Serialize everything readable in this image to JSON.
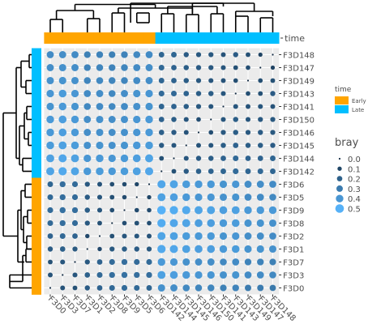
{
  "chart_data": {
    "type": "heatmap",
    "samples_x": [
      "F3D0",
      "F3D3",
      "F3D7",
      "F3D1",
      "F3D2",
      "F3D8",
      "F3D9",
      "F3D5",
      "F3D6",
      "F3D142",
      "F3D144",
      "F3D145",
      "F3D146",
      "F3D150",
      "F3D141",
      "F3D143",
      "F3D149",
      "F3D147",
      "F3D148"
    ],
    "samples_y": [
      "F3D148",
      "F3D147",
      "F3D149",
      "F3D143",
      "F3D141",
      "F3D150",
      "F3D146",
      "F3D145",
      "F3D144",
      "F3D142",
      "F3D6",
      "F3D5",
      "F3D9",
      "F3D8",
      "F3D2",
      "F3D1",
      "F3D7",
      "F3D3",
      "F3D0"
    ],
    "time_x": [
      "Early",
      "Early",
      "Early",
      "Early",
      "Early",
      "Early",
      "Early",
      "Early",
      "Early",
      "Late",
      "Late",
      "Late",
      "Late",
      "Late",
      "Late",
      "Late",
      "Late",
      "Late",
      "Late"
    ],
    "time_y": [
      "Late",
      "Late",
      "Late",
      "Late",
      "Late",
      "Late",
      "Late",
      "Late",
      "Late",
      "Late",
      "Early",
      "Early",
      "Early",
      "Early",
      "Early",
      "Early",
      "Early",
      "Early",
      "Early"
    ],
    "values": [
      [
        0.36,
        0.37,
        0.36,
        0.32,
        0.33,
        0.32,
        0.33,
        0.35,
        0.36,
        0.22,
        0.22,
        0.18,
        0.17,
        0.17,
        0.15,
        0.18,
        0.14,
        0.09,
        0.0
      ],
      [
        0.37,
        0.38,
        0.37,
        0.33,
        0.34,
        0.33,
        0.34,
        0.36,
        0.37,
        0.23,
        0.21,
        0.19,
        0.18,
        0.17,
        0.16,
        0.14,
        0.13,
        0.0,
        0.09
      ],
      [
        0.38,
        0.39,
        0.38,
        0.34,
        0.35,
        0.34,
        0.34,
        0.36,
        0.37,
        0.22,
        0.21,
        0.19,
        0.17,
        0.16,
        0.15,
        0.13,
        0.0,
        0.13,
        0.14
      ],
      [
        0.4,
        0.42,
        0.4,
        0.36,
        0.37,
        0.35,
        0.37,
        0.39,
        0.4,
        0.24,
        0.23,
        0.21,
        0.19,
        0.19,
        0.16,
        0.0,
        0.13,
        0.14,
        0.18
      ],
      [
        0.39,
        0.41,
        0.39,
        0.35,
        0.36,
        0.35,
        0.36,
        0.38,
        0.39,
        0.22,
        0.21,
        0.19,
        0.17,
        0.16,
        0.0,
        0.16,
        0.15,
        0.16,
        0.15
      ],
      [
        0.41,
        0.43,
        0.41,
        0.37,
        0.38,
        0.37,
        0.38,
        0.4,
        0.41,
        0.21,
        0.19,
        0.16,
        0.13,
        0.0,
        0.16,
        0.19,
        0.16,
        0.17,
        0.17
      ],
      [
        0.41,
        0.43,
        0.41,
        0.37,
        0.38,
        0.37,
        0.38,
        0.4,
        0.41,
        0.2,
        0.18,
        0.15,
        0.0,
        0.13,
        0.17,
        0.19,
        0.17,
        0.18,
        0.17
      ],
      [
        0.42,
        0.44,
        0.42,
        0.38,
        0.39,
        0.38,
        0.39,
        0.41,
        0.42,
        0.18,
        0.16,
        0.0,
        0.15,
        0.16,
        0.19,
        0.21,
        0.19,
        0.19,
        0.18
      ],
      [
        0.44,
        0.46,
        0.44,
        0.4,
        0.41,
        0.4,
        0.41,
        0.43,
        0.45,
        0.14,
        0.0,
        0.16,
        0.18,
        0.19,
        0.21,
        0.23,
        0.21,
        0.21,
        0.22
      ],
      [
        0.45,
        0.47,
        0.45,
        0.41,
        0.42,
        0.41,
        0.42,
        0.44,
        0.46,
        0.0,
        0.14,
        0.18,
        0.2,
        0.21,
        0.22,
        0.24,
        0.22,
        0.23,
        0.22
      ],
      [
        0.22,
        0.25,
        0.24,
        0.17,
        0.15,
        0.13,
        0.12,
        0.1,
        0.0,
        0.46,
        0.45,
        0.42,
        0.41,
        0.41,
        0.39,
        0.4,
        0.37,
        0.37,
        0.36
      ],
      [
        0.23,
        0.25,
        0.24,
        0.18,
        0.16,
        0.14,
        0.12,
        0.0,
        0.1,
        0.44,
        0.43,
        0.41,
        0.4,
        0.4,
        0.38,
        0.39,
        0.36,
        0.36,
        0.35
      ],
      [
        0.24,
        0.26,
        0.25,
        0.19,
        0.16,
        0.13,
        0.0,
        0.12,
        0.12,
        0.5,
        0.48,
        0.47,
        0.45,
        0.45,
        0.43,
        0.44,
        0.41,
        0.41,
        0.41
      ],
      [
        0.23,
        0.25,
        0.24,
        0.17,
        0.14,
        0.0,
        0.13,
        0.14,
        0.13,
        0.48,
        0.46,
        0.45,
        0.43,
        0.43,
        0.41,
        0.42,
        0.39,
        0.39,
        0.38
      ],
      [
        0.21,
        0.23,
        0.21,
        0.11,
        0.0,
        0.14,
        0.16,
        0.16,
        0.15,
        0.45,
        0.44,
        0.42,
        0.41,
        0.41,
        0.39,
        0.4,
        0.37,
        0.37,
        0.36
      ],
      [
        0.18,
        0.2,
        0.17,
        0.0,
        0.11,
        0.17,
        0.19,
        0.18,
        0.17,
        0.47,
        0.46,
        0.44,
        0.43,
        0.43,
        0.41,
        0.42,
        0.39,
        0.39,
        0.38
      ],
      [
        0.14,
        0.16,
        0.0,
        0.17,
        0.21,
        0.24,
        0.25,
        0.24,
        0.24,
        0.41,
        0.4,
        0.38,
        0.37,
        0.37,
        0.35,
        0.36,
        0.33,
        0.33,
        0.32
      ],
      [
        0.15,
        0.0,
        0.16,
        0.2,
        0.23,
        0.25,
        0.26,
        0.25,
        0.25,
        0.44,
        0.43,
        0.41,
        0.4,
        0.4,
        0.38,
        0.39,
        0.36,
        0.36,
        0.35
      ],
      [
        0.0,
        0.15,
        0.14,
        0.18,
        0.21,
        0.23,
        0.24,
        0.23,
        0.22,
        0.38,
        0.37,
        0.35,
        0.34,
        0.34,
        0.32,
        0.33,
        0.3,
        0.3,
        0.29
      ]
    ],
    "row_axis_label": "time",
    "legend_time": {
      "title": "time",
      "items": [
        {
          "label": "Early",
          "color": "#FFA500"
        },
        {
          "label": "Late",
          "color": "#00BFFF"
        }
      ]
    },
    "legend_bray": {
      "title": "bray",
      "breaks": [
        0.0,
        0.1,
        0.2,
        0.3,
        0.4,
        0.5
      ],
      "labels": [
        "0.0",
        "0.1",
        "0.2",
        "0.3",
        "0.4",
        "0.5"
      ]
    },
    "colors": {
      "early": "#FFA500",
      "late": "#00BFFF",
      "tile_bg": "#EBEBEB",
      "point_low": "#132B43",
      "point_high": "#56B1F7"
    }
  }
}
